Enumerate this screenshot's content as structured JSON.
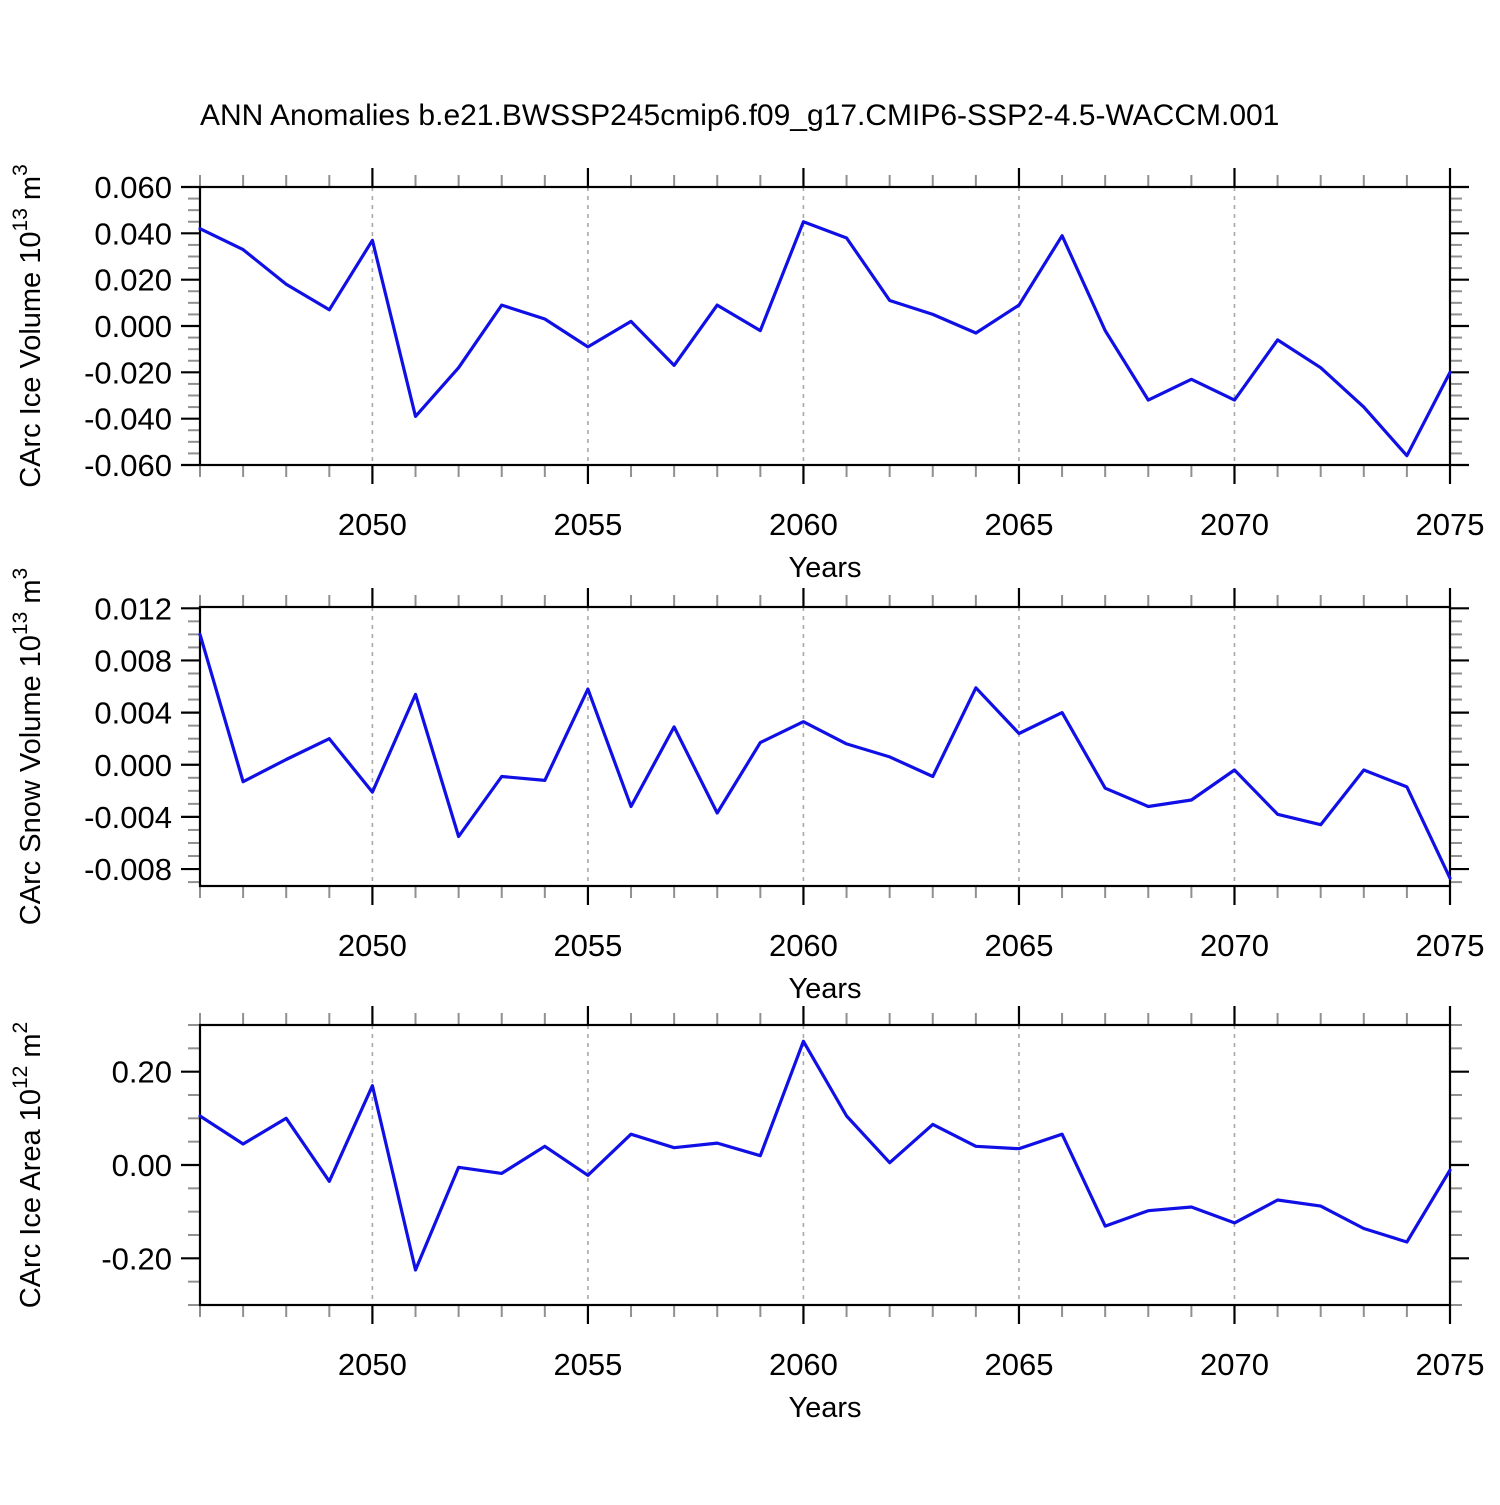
{
  "title": "ANN Anomalies b.e21.BWSSP245cmip6.f09_g17.CMIP6-SSP2-4.5-WACCM.001",
  "colors": {
    "line": "#1010e6",
    "axis": "#000000",
    "minor_tick": "#909090",
    "grid": "#a8a8a8",
    "background": "#ffffff"
  },
  "x_axis": {
    "label": "Years",
    "range": [
      2046,
      2075
    ],
    "major_ticks": [
      2050,
      2055,
      2060,
      2065,
      2070,
      2075
    ],
    "major_tick_labels": [
      "2050",
      "2055",
      "2060",
      "2065",
      "2070",
      "2075"
    ],
    "minor_step": 1,
    "gridlines": [
      2050,
      2055,
      2060,
      2065,
      2070
    ]
  },
  "years": [
    2046,
    2047,
    2048,
    2049,
    2050,
    2051,
    2052,
    2053,
    2054,
    2055,
    2056,
    2057,
    2058,
    2059,
    2060,
    2061,
    2062,
    2063,
    2064,
    2065,
    2066,
    2067,
    2068,
    2069,
    2070,
    2071,
    2072,
    2073,
    2074,
    2075
  ],
  "chart_data": [
    {
      "type": "line",
      "name": "carc-ice-volume",
      "ylabel": "CArc Ice Volume 10^{13} m^{3}",
      "xlabel": "Years",
      "ylim": [
        -0.06,
        0.06
      ],
      "yminor_step": 0.005,
      "yticks": [
        {
          "v": 0.06,
          "label": "0.060"
        },
        {
          "v": 0.04,
          "label": "0.040"
        },
        {
          "v": 0.02,
          "label": "0.020"
        },
        {
          "v": 0.0,
          "label": "0.000"
        },
        {
          "v": -0.02,
          "label": "-0.020"
        },
        {
          "v": -0.04,
          "label": "-0.040"
        },
        {
          "v": -0.06,
          "label": "-0.060"
        }
      ],
      "values": [
        0.042,
        0.033,
        0.018,
        0.007,
        0.037,
        -0.039,
        -0.018,
        0.009,
        0.003,
        -0.009,
        0.002,
        -0.017,
        0.009,
        -0.002,
        0.045,
        0.038,
        0.011,
        0.005,
        -0.003,
        0.009,
        0.039,
        -0.002,
        -0.032,
        -0.023,
        -0.032,
        -0.006,
        -0.018,
        -0.035,
        -0.056,
        -0.02
      ]
    },
    {
      "type": "line",
      "name": "carc-snow-volume",
      "ylabel": "CArc Snow Volume 10^{13} m^{3}",
      "xlabel": "Years",
      "ylim": [
        -0.0093,
        0.0121
      ],
      "yminor_step": 0.001,
      "yticks": [
        {
          "v": 0.012,
          "label": "0.012"
        },
        {
          "v": 0.008,
          "label": "0.008"
        },
        {
          "v": 0.004,
          "label": "0.004"
        },
        {
          "v": 0.0,
          "label": "0.000"
        },
        {
          "v": -0.004,
          "label": "-0.004"
        },
        {
          "v": -0.008,
          "label": "-0.008"
        }
      ],
      "values": [
        0.01,
        -0.0013,
        0.0004,
        0.002,
        -0.0021,
        0.0054,
        -0.0055,
        -0.0009,
        -0.0012,
        0.0058,
        -0.0032,
        0.0029,
        -0.0037,
        0.0017,
        0.0033,
        0.0016,
        0.0006,
        -0.0009,
        0.0059,
        0.0024,
        0.004,
        -0.0018,
        -0.0032,
        -0.0027,
        -0.0004,
        -0.0038,
        -0.0046,
        -0.0004,
        -0.0017,
        -0.0087
      ]
    },
    {
      "type": "line",
      "name": "carc-ice-area",
      "ylabel": "CArc Ice Area 10^{12} m^{2}",
      "xlabel": "Years",
      "ylim": [
        -0.3,
        0.3
      ],
      "yminor_step": 0.05,
      "yticks": [
        {
          "v": 0.2,
          "label": "0.20"
        },
        {
          "v": 0.0,
          "label": "0.00"
        },
        {
          "v": -0.2,
          "label": "-0.20"
        }
      ],
      "values": [
        0.105,
        0.045,
        0.1,
        -0.035,
        0.17,
        -0.225,
        -0.005,
        -0.018,
        0.04,
        -0.022,
        0.066,
        0.037,
        0.047,
        0.02,
        0.265,
        0.105,
        0.005,
        0.087,
        0.04,
        0.035,
        0.066,
        -0.131,
        -0.098,
        -0.09,
        -0.124,
        -0.075,
        -0.088,
        -0.136,
        -0.165,
        -0.011
      ]
    }
  ]
}
